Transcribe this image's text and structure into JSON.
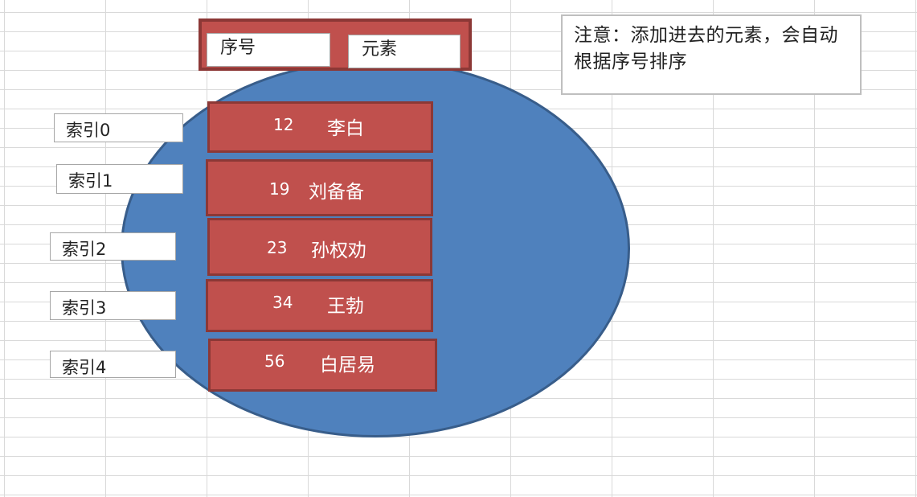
{
  "header": {
    "seq_label": "序号",
    "elem_label": "元素"
  },
  "note": {
    "text": "注意：添加进去的元素，会自动根据序号排序"
  },
  "rows": [
    {
      "index_label": "索引0",
      "num": "12",
      "name": "李白"
    },
    {
      "index_label": "索引1",
      "num": "19",
      "name": "刘备备"
    },
    {
      "index_label": "索引2",
      "num": "23",
      "name": "孙权劝"
    },
    {
      "index_label": "索引3",
      "num": "34",
      "name": "王勃"
    },
    {
      "index_label": "索引4",
      "num": "56",
      "name": "白居易"
    }
  ],
  "colors": {
    "ellipse_fill": "#4f81bd",
    "ellipse_stroke": "#385d8a",
    "row_fill": "#c0504d",
    "row_stroke": "#8c3836"
  }
}
